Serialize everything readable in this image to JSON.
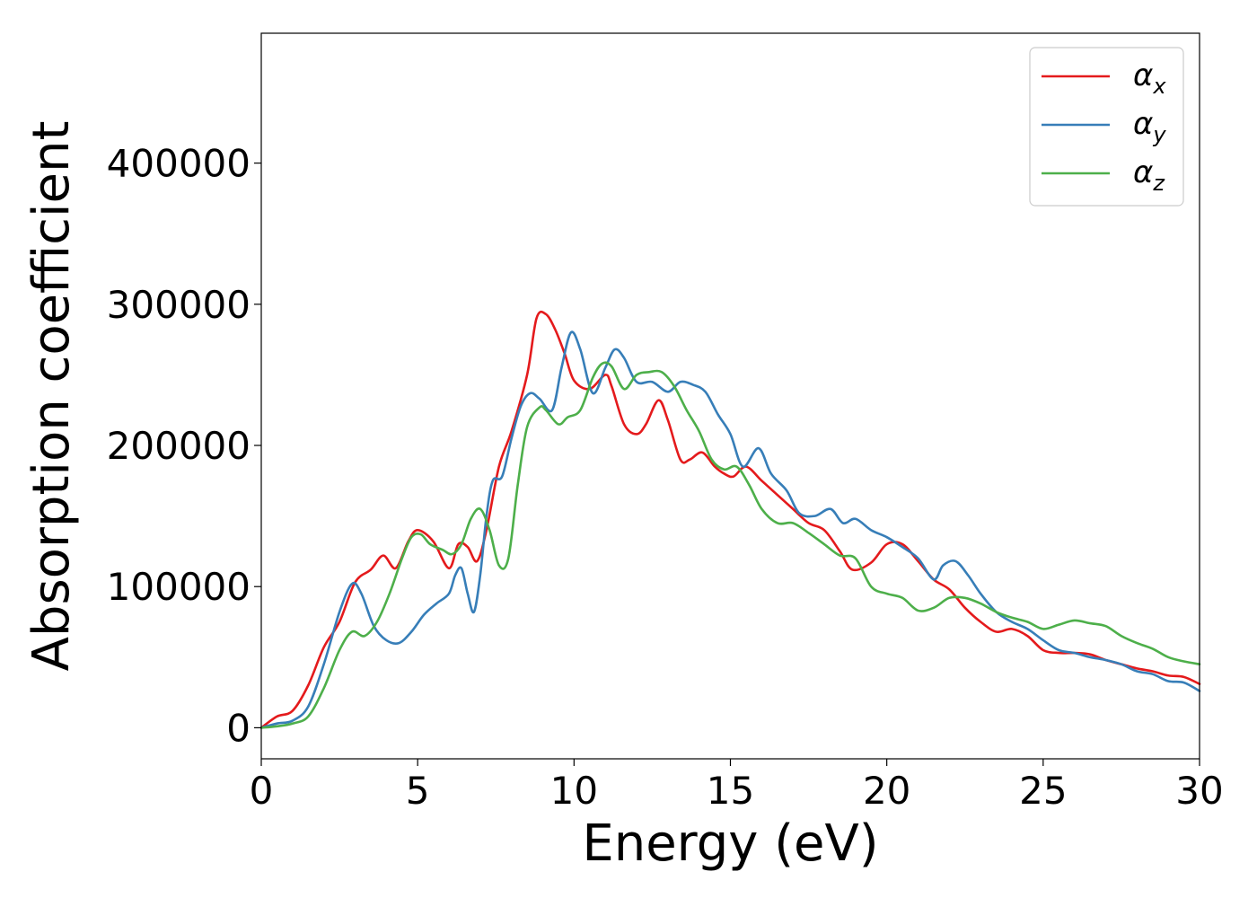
{
  "chart_data": {
    "type": "line",
    "title": "",
    "xlabel": "Energy (eV)",
    "ylabel": "Absorption coefficient",
    "xlim": [
      0,
      30
    ],
    "ylim": [
      -22000,
      492000
    ],
    "xticks": [
      0,
      5,
      10,
      15,
      20,
      25,
      30
    ],
    "yticks": [
      0,
      100000,
      200000,
      300000,
      400000
    ],
    "grid": false,
    "legend_position": "top-right",
    "series": [
      {
        "name": "α",
        "subscript": "x",
        "color": "#e41a1c",
        "x": [
          0,
          0.5,
          1.0,
          1.5,
          2.0,
          2.5,
          3.0,
          3.5,
          3.9,
          4.3,
          4.7,
          5.0,
          5.5,
          6.0,
          6.3,
          6.6,
          6.9,
          7.2,
          7.6,
          8.0,
          8.5,
          8.8,
          9.1,
          9.4,
          9.7,
          10.0,
          10.5,
          11.0,
          11.2,
          11.6,
          12.0,
          12.3,
          12.7,
          13.0,
          13.4,
          13.7,
          14.1,
          14.5,
          14.8,
          15.1,
          15.5,
          16.0,
          16.5,
          17.0,
          17.5,
          18.0,
          18.5,
          18.9,
          19.5,
          20.0,
          20.5,
          21.0,
          21.5,
          22.0,
          22.5,
          23.0,
          23.5,
          24.0,
          24.5,
          25.0,
          25.5,
          26.0,
          26.5,
          27.0,
          27.5,
          28.0,
          28.5,
          29.0,
          29.5,
          30.0
        ],
        "values": [
          0,
          8000,
          12000,
          30000,
          57000,
          75000,
          103000,
          112000,
          122000,
          113000,
          132000,
          140000,
          132000,
          113000,
          130000,
          128000,
          118000,
          140000,
          185000,
          210000,
          250000,
          290000,
          293000,
          282000,
          265000,
          246000,
          240000,
          250000,
          242000,
          215000,
          208000,
          215000,
          232000,
          218000,
          190000,
          190000,
          195000,
          185000,
          180000,
          178000,
          185000,
          175000,
          165000,
          155000,
          145000,
          140000,
          125000,
          112000,
          117000,
          130000,
          130000,
          118000,
          105000,
          98000,
          85000,
          75000,
          68000,
          70000,
          65000,
          55000,
          53000,
          53000,
          52000,
          48000,
          45000,
          42000,
          40000,
          37000,
          36000,
          31000
        ]
      },
      {
        "name": "α",
        "subscript": "y",
        "color": "#377eb8",
        "x": [
          0,
          0.5,
          1.0,
          1.5,
          2.0,
          2.5,
          2.9,
          3.2,
          3.6,
          4.0,
          4.4,
          4.8,
          5.2,
          5.6,
          6.0,
          6.2,
          6.4,
          6.6,
          6.8,
          7.0,
          7.2,
          7.4,
          7.7,
          8.0,
          8.3,
          8.6,
          8.9,
          9.3,
          9.6,
          9.9,
          10.2,
          10.6,
          11.0,
          11.3,
          11.6,
          12.0,
          12.5,
          13.0,
          13.4,
          13.8,
          14.2,
          14.6,
          15.0,
          15.4,
          15.9,
          16.3,
          16.8,
          17.2,
          17.7,
          18.2,
          18.6,
          19.0,
          19.5,
          20.0,
          20.5,
          21.0,
          21.5,
          21.8,
          22.2,
          22.6,
          23.0,
          23.5,
          24.0,
          24.5,
          25.0,
          25.5,
          26.0,
          26.5,
          27.0,
          27.5,
          28.0,
          28.5,
          29.0,
          29.5,
          30.0
        ],
        "values": [
          0,
          3000,
          5000,
          15000,
          45000,
          82000,
          102000,
          95000,
          72000,
          62000,
          60000,
          68000,
          80000,
          88000,
          95000,
          108000,
          113000,
          95000,
          82000,
          108000,
          150000,
          175000,
          178000,
          205000,
          228000,
          237000,
          233000,
          225000,
          255000,
          280000,
          268000,
          237000,
          255000,
          268000,
          262000,
          245000,
          245000,
          238000,
          245000,
          243000,
          238000,
          222000,
          208000,
          185000,
          198000,
          180000,
          168000,
          152000,
          150000,
          155000,
          145000,
          148000,
          140000,
          135000,
          128000,
          120000,
          105000,
          115000,
          118000,
          108000,
          95000,
          82000,
          75000,
          70000,
          62000,
          55000,
          53000,
          50000,
          48000,
          45000,
          40000,
          38000,
          33000,
          32000,
          26000
        ]
      },
      {
        "name": "α",
        "subscript": "z",
        "color": "#4daf4a",
        "x": [
          0,
          0.5,
          1.0,
          1.5,
          2.0,
          2.5,
          2.9,
          3.3,
          3.7,
          4.1,
          4.5,
          4.8,
          5.1,
          5.4,
          5.8,
          6.1,
          6.4,
          6.7,
          7.0,
          7.3,
          7.6,
          7.9,
          8.2,
          8.5,
          8.9,
          9.1,
          9.5,
          9.8,
          10.2,
          10.6,
          10.9,
          11.2,
          11.6,
          12.0,
          12.4,
          12.8,
          13.2,
          13.6,
          14.0,
          14.4,
          14.8,
          15.2,
          15.6,
          16.0,
          16.5,
          17.0,
          17.5,
          18.0,
          18.5,
          19.0,
          19.5,
          20.0,
          20.5,
          21.0,
          21.5,
          22.0,
          22.5,
          23.0,
          23.5,
          24.0,
          24.5,
          25.0,
          25.5,
          26.0,
          26.5,
          27.0,
          27.5,
          28.0,
          28.5,
          29.0,
          29.5,
          30.0
        ],
        "values": [
          0,
          1000,
          3000,
          8000,
          28000,
          55000,
          68000,
          65000,
          75000,
          95000,
          120000,
          135000,
          137000,
          130000,
          126000,
          123000,
          130000,
          148000,
          155000,
          140000,
          115000,
          120000,
          172000,
          213000,
          227000,
          225000,
          215000,
          220000,
          225000,
          248000,
          258000,
          256000,
          240000,
          250000,
          252000,
          252000,
          242000,
          225000,
          210000,
          190000,
          183000,
          185000,
          172000,
          155000,
          145000,
          145000,
          138000,
          130000,
          122000,
          120000,
          100000,
          95000,
          92000,
          83000,
          85000,
          92000,
          92000,
          88000,
          82000,
          78000,
          75000,
          70000,
          73000,
          76000,
          74000,
          72000,
          65000,
          60000,
          56000,
          50000,
          47000,
          45000
        ]
      }
    ]
  }
}
